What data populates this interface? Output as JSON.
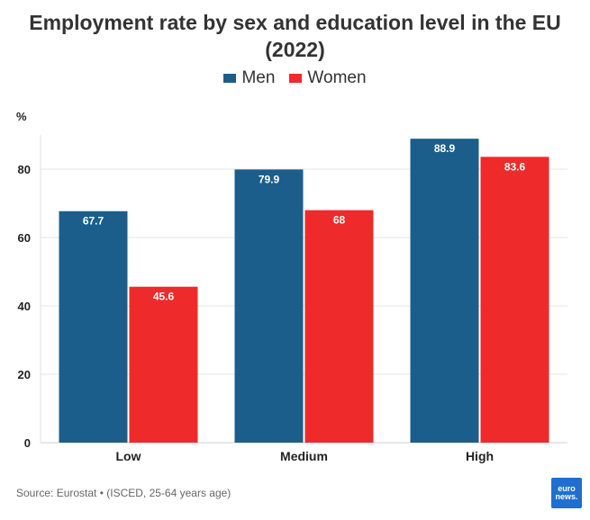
{
  "chart_data": {
    "type": "bar",
    "title": "Employment rate by sex and education level in the EU (2022)",
    "ylabel": "%",
    "xlabel": "",
    "categories": [
      "Low",
      "Medium",
      "High"
    ],
    "series": [
      {
        "name": "Men",
        "color": "#1b5e8c",
        "values": [
          67.7,
          79.9,
          88.9
        ]
      },
      {
        "name": "Women",
        "color": "#ee2a2a",
        "values": [
          45.6,
          68,
          83.6
        ]
      }
    ],
    "ylim": [
      0,
      90
    ],
    "yticks": [
      0,
      20,
      40,
      60,
      80
    ],
    "grid": true,
    "legend": "top-center"
  },
  "footer": {
    "source": "Source: Eurostat • (ISCED, 25-64 years age)"
  },
  "logo": {
    "line1": "euro",
    "line2": "news."
  }
}
